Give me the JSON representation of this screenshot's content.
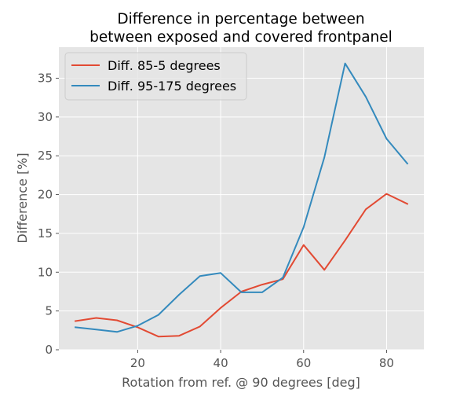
{
  "chart_data": {
    "type": "line",
    "title_line1": "Difference in percentage between",
    "title_line2": "between exposed and covered frontpanel",
    "xlabel": "Rotation from ref. @ 90 degrees [deg]",
    "ylabel": "Difference [%]",
    "xlim": [
      1.0,
      89.0
    ],
    "ylim": [
      0,
      39.0
    ],
    "xticks": [
      20,
      40,
      60,
      80
    ],
    "yticks": [
      0,
      5,
      10,
      15,
      20,
      25,
      30,
      35
    ],
    "grid": true,
    "legend_position": "upper left",
    "x": [
      5,
      10,
      15,
      20,
      25,
      30,
      35,
      40,
      45,
      50,
      55,
      60,
      65,
      70,
      75,
      80,
      85
    ],
    "series": [
      {
        "name": "Diff. 85-5 degrees",
        "color": "#E24A33",
        "values": [
          3.7,
          4.1,
          3.8,
          2.9,
          1.7,
          1.8,
          3.0,
          5.4,
          7.5,
          8.4,
          9.1,
          13.5,
          10.3,
          14.1,
          18.1,
          20.1,
          18.8
        ]
      },
      {
        "name": "Diff. 95-175 degrees",
        "color": "#348ABD",
        "values": [
          2.9,
          2.6,
          2.3,
          3.1,
          4.5,
          7.1,
          9.5,
          9.9,
          7.4,
          7.4,
          9.3,
          15.8,
          24.8,
          36.9,
          32.6,
          27.2,
          24.0
        ]
      }
    ]
  }
}
